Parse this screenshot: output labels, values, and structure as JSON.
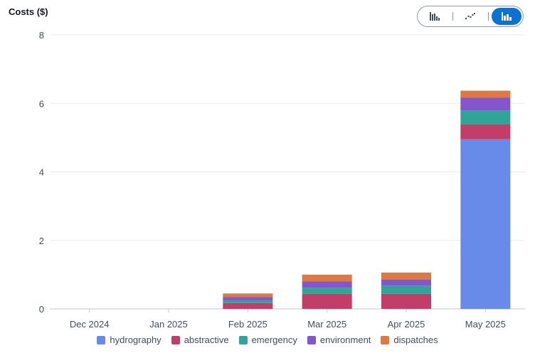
{
  "chart_data": {
    "type": "bar",
    "stacked": true,
    "ylabel": "Costs ($)",
    "ylim": [
      0,
      8
    ],
    "yticks": [
      0,
      2,
      4,
      6,
      8
    ],
    "grid": true,
    "legend_position": "bottom",
    "categories": [
      "Dec 2024",
      "Jan 2025",
      "Feb 2025",
      "Mar 2025",
      "Apr 2025",
      "May 2025"
    ],
    "series": [
      {
        "name": "hydrography",
        "color": "#688ae8",
        "values": [
          0,
          0,
          0,
          0,
          0,
          4.95
        ]
      },
      {
        "name": "abstractive",
        "color": "#c33d69",
        "values": [
          0,
          0,
          0.17,
          0.44,
          0.44,
          0.44
        ]
      },
      {
        "name": "emergency",
        "color": "#2ea597",
        "values": [
          0,
          0,
          0.08,
          0.18,
          0.24,
          0.4
        ]
      },
      {
        "name": "environment",
        "color": "#8456ce",
        "values": [
          0,
          0,
          0.1,
          0.18,
          0.18,
          0.38
        ]
      },
      {
        "name": "dispatches",
        "color": "#e07941",
        "values": [
          0,
          0,
          0.1,
          0.2,
          0.2,
          0.2
        ]
      }
    ]
  },
  "toolbar": {
    "options": [
      "bar-chart-icon",
      "line-chart-icon",
      "stacked-bar-chart-icon"
    ],
    "selected": "stacked-bar-chart-icon",
    "selected_color": "#0972d3"
  }
}
